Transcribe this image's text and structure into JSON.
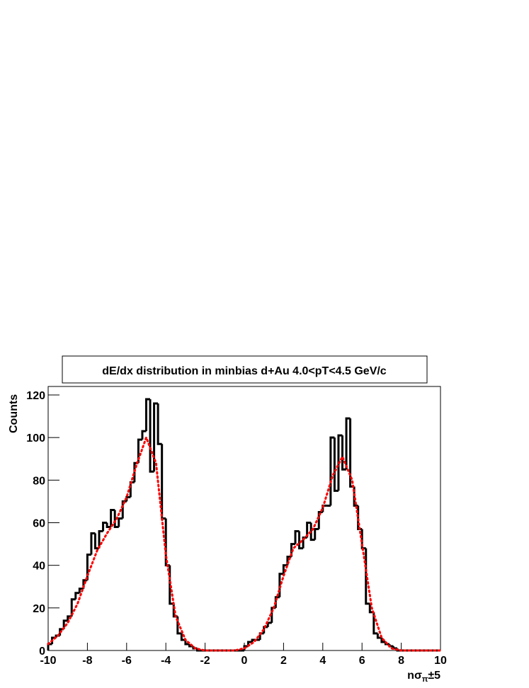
{
  "chart_data": {
    "type": "histogram",
    "title": "dE/dx distribution in minbias d+Au 4.0<pT<4.5 GeV/c",
    "y_label": "Counts",
    "x_label": {
      "text": "nσ",
      "sub": "π",
      "suffix": "±5"
    },
    "color": "#000000",
    "bins": [
      -10,
      -9.8,
      -9.6,
      -9.4,
      -9.2,
      -9,
      -8.8,
      -8.6,
      -8.4,
      -8.2,
      -8,
      -7.8,
      -7.6,
      -7.4,
      -7.2,
      -7,
      -6.8,
      -6.6,
      -6.4,
      -6.2,
      -6,
      -5.8,
      -5.6,
      -5.4,
      -5.2,
      -5,
      -4.8,
      -4.6,
      -4.4,
      -4.2,
      -4,
      -3.8,
      -3.6,
      -3.4,
      -3.2,
      -3,
      -2.8,
      -2.6,
      -2.4,
      -2.2,
      -2,
      -1.8,
      -1.6,
      -1.4,
      -1.2,
      -1,
      -0.8,
      -0.6,
      -0.4,
      -0.2,
      0,
      0.2,
      0.4,
      0.6,
      0.8,
      1,
      1.2,
      1.4,
      1.6,
      1.8,
      2,
      2.2,
      2.4,
      2.6,
      2.8,
      3,
      3.2,
      3.4,
      3.6,
      3.8,
      4,
      4.2,
      4.4,
      4.6,
      4.8,
      5,
      5.2,
      5.4,
      5.6,
      5.8,
      6,
      6.2,
      6.4,
      6.6,
      6.8,
      7,
      7.2,
      7.4,
      7.6,
      7.8,
      8,
      8.2,
      8.4,
      8.6,
      8.8,
      9,
      9.2,
      9.4,
      9.6,
      9.8,
      10
    ],
    "counts": [
      3,
      6,
      7,
      10,
      14,
      16,
      24,
      27,
      29,
      33,
      45,
      55,
      48,
      56,
      60,
      58,
      66,
      58,
      62,
      70,
      72,
      79,
      88,
      99,
      103,
      118,
      84,
      116,
      97,
      62,
      40,
      22,
      16,
      8,
      5,
      3,
      2,
      1,
      0,
      0,
      0,
      0,
      0,
      0,
      0,
      0,
      0,
      0,
      0,
      0,
      2,
      4,
      5,
      5,
      8,
      11,
      13,
      20,
      25,
      36,
      40,
      44,
      50,
      56,
      48,
      53,
      60,
      52,
      57,
      65,
      68,
      68,
      100,
      75,
      101,
      85,
      109,
      77,
      68,
      57,
      48,
      22,
      18,
      8,
      6,
      4,
      3,
      2,
      1,
      0,
      0,
      0,
      0,
      0,
      0,
      0,
      0,
      0,
      0,
      0
    ],
    "fit": {
      "type": "line",
      "color": "#ff0000",
      "x": [
        -10,
        -9.5,
        -9,
        -8.5,
        -8,
        -7.5,
        -7,
        -6.5,
        -6,
        -5.5,
        -5,
        -4.5,
        -4,
        -3.5,
        -3,
        -2.5,
        -2,
        -1.5,
        -1,
        -0.5,
        0,
        0.5,
        1,
        1.5,
        2,
        2.5,
        3,
        3.5,
        4,
        4.5,
        5,
        5.5,
        6,
        6.5,
        7,
        7.5,
        8,
        8.5,
        9,
        9.5,
        10
      ],
      "values": [
        3,
        7,
        13,
        22,
        35,
        47,
        55,
        62,
        72,
        87,
        100,
        88,
        45,
        16,
        5,
        1,
        0,
        0,
        0,
        0,
        1,
        4,
        10,
        20,
        35,
        48,
        52,
        57,
        67,
        82,
        91,
        80,
        50,
        20,
        6,
        1,
        0,
        0,
        0,
        0,
        0
      ]
    },
    "xlim": [
      -10,
      10
    ],
    "xticks": [
      -10,
      -8,
      -6,
      -4,
      -2,
      0,
      2,
      4,
      6,
      8,
      10
    ],
    "ylim": [
      0,
      120
    ],
    "yticks": [
      0,
      20,
      40,
      60,
      80,
      100,
      120
    ]
  }
}
